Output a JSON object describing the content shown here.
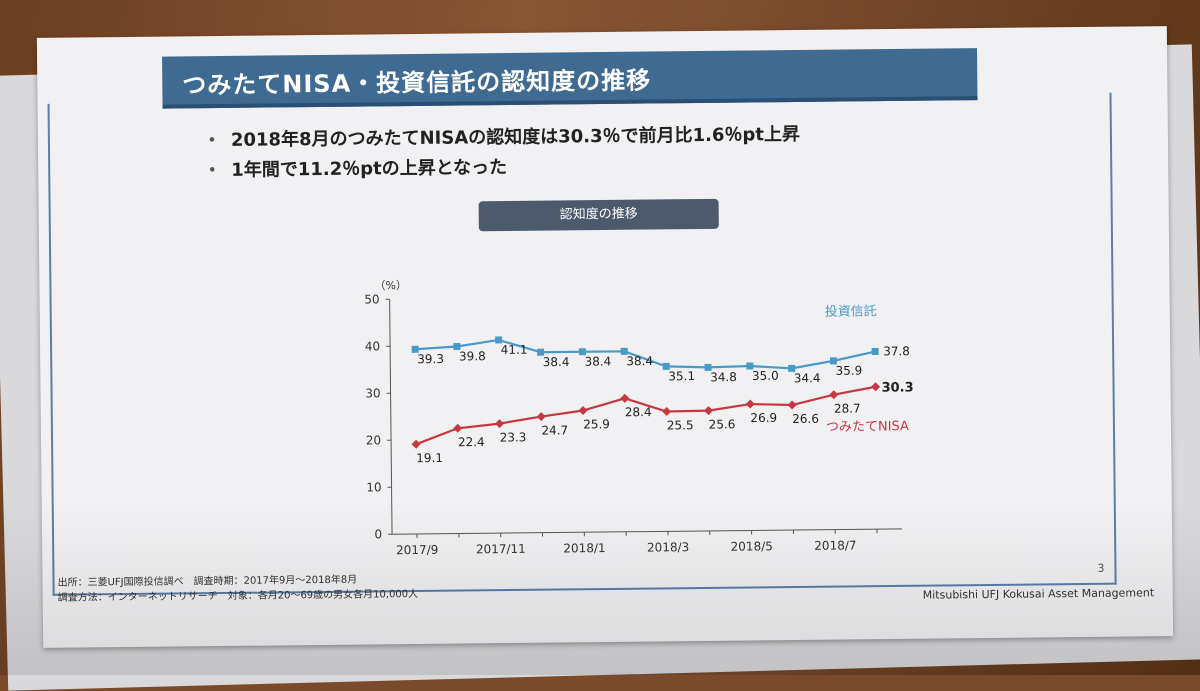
{
  "title": "つみたてNISA・投資信託の認知度の推移",
  "bullets": [
    "2018年8月のつみたてNISAの認知度は30.3％で前月比1.6％pt上昇",
    "1年間で11.2％ptの上昇となった"
  ],
  "chart_label": "認知度の推移",
  "footer": {
    "source_line1": "出所：三菱UFJ国際投信調べ　調査時期：2017年9月～2018年8月",
    "source_line2": "調査方法：インターネットリサーチ　対象：各月20～69歳の男女各月10,000人",
    "page_number": "3",
    "company": "Mitsubishi UFJ Kokusai Asset Management"
  },
  "chart_data": {
    "type": "line",
    "title": "認知度の推移",
    "y_unit_label": "（%）",
    "ylim": [
      0,
      50
    ],
    "y_ticks": [
      0,
      10,
      20,
      30,
      40,
      50
    ],
    "x": [
      "2017/9",
      "2017/10",
      "2017/11",
      "2017/12",
      "2018/1",
      "2018/2",
      "2018/3",
      "2018/4",
      "2018/5",
      "2018/6",
      "2018/7",
      "2018/8"
    ],
    "x_tick_labels": [
      "2017/9",
      "2017/11",
      "2018/1",
      "2018/3",
      "2018/5",
      "2018/7"
    ],
    "series": [
      {
        "name": "投資信託",
        "color": "#4a9ac8",
        "values": [
          39.3,
          39.8,
          41.1,
          38.4,
          38.4,
          38.4,
          35.1,
          34.8,
          35.0,
          34.4,
          35.9,
          37.8
        ]
      },
      {
        "name": "つみたてNISA",
        "color": "#c8373f",
        "values": [
          19.1,
          22.4,
          23.3,
          24.7,
          25.9,
          28.4,
          25.5,
          25.6,
          26.9,
          26.6,
          28.7,
          30.3
        ]
      }
    ],
    "grid": false,
    "legend": "inline-labels"
  }
}
